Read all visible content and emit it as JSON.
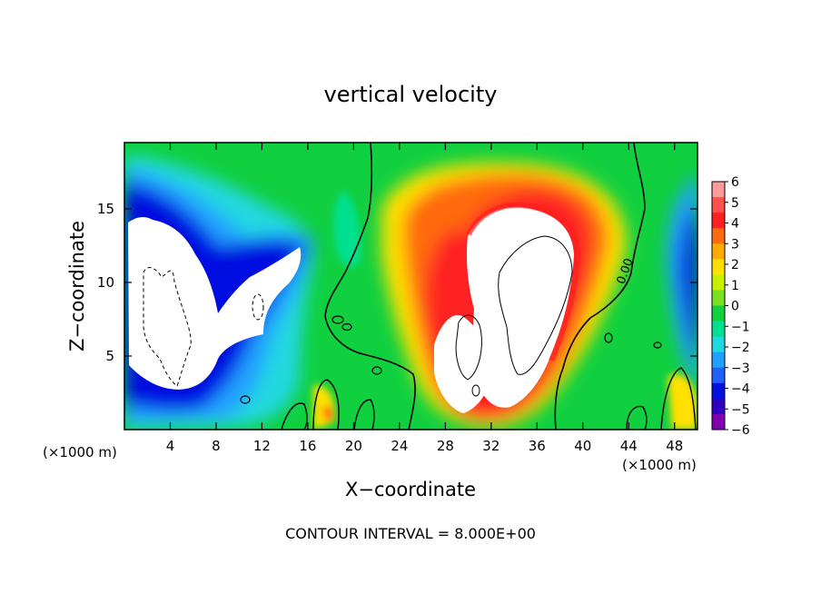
{
  "chart_data": {
    "type": "heatmap",
    "title": "vertical velocity",
    "xlabel": "X−coordinate",
    "ylabel": "Z−coordinate",
    "x_unit": "(×1000 m)",
    "z_unit": "(×1000 m)",
    "xlim": [
      0,
      50
    ],
    "ylim": [
      0,
      19.5
    ],
    "x_ticks": [
      4,
      8,
      12,
      16,
      20,
      24,
      28,
      32,
      36,
      40,
      44,
      48
    ],
    "y_ticks": [
      5,
      10,
      15
    ],
    "colorbar": {
      "ticks": [
        6,
        5,
        4,
        3,
        2,
        1,
        0,
        -1,
        -2,
        -3,
        -4,
        -5,
        -6
      ],
      "tick_labels": [
        "6",
        "5",
        "4",
        "3",
        "2",
        "1",
        "0",
        "−1",
        "−2",
        "−3",
        "−4",
        "−5",
        "−6"
      ],
      "colors": [
        "#ff9a9a",
        "#ff5050",
        "#ff2020",
        "#ff6a10",
        "#ffaa00",
        "#ffe000",
        "#c8f000",
        "#7ae020",
        "#10d040",
        "#00e090",
        "#20d8e0",
        "#20a0ff",
        "#2060ff",
        "#0010e0",
        "#3000c0",
        "#8000b0"
      ]
    },
    "contour_label": "0.00",
    "contour_interval_text": "CONTOUR INTERVAL = 8.000E+00"
  }
}
